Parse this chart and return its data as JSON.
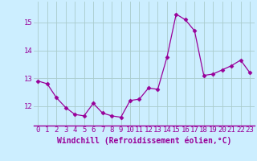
{
  "x": [
    0,
    1,
    2,
    3,
    4,
    5,
    6,
    7,
    8,
    9,
    10,
    11,
    12,
    13,
    14,
    15,
    16,
    17,
    18,
    19,
    20,
    21,
    22,
    23
  ],
  "y": [
    12.9,
    12.8,
    12.3,
    11.95,
    11.7,
    11.65,
    12.1,
    11.75,
    11.65,
    11.6,
    12.2,
    12.25,
    12.65,
    12.6,
    13.75,
    15.3,
    15.1,
    14.7,
    13.1,
    13.15,
    13.3,
    13.45,
    13.65,
    13.2
  ],
  "line_color": "#990099",
  "marker": "D",
  "markersize": 2.5,
  "linewidth": 0.9,
  "background_color": "#cceeff",
  "grid_color": "#aacccc",
  "xlabel": "Windchill (Refroidissement éolien,°C)",
  "xlabel_fontsize": 7,
  "tick_fontsize": 6.5,
  "ylim": [
    11.3,
    15.75
  ],
  "yticks": [
    12,
    13,
    14,
    15
  ],
  "xticks": [
    0,
    1,
    2,
    3,
    4,
    5,
    6,
    7,
    8,
    9,
    10,
    11,
    12,
    13,
    14,
    15,
    16,
    17,
    18,
    19,
    20,
    21,
    22,
    23
  ]
}
